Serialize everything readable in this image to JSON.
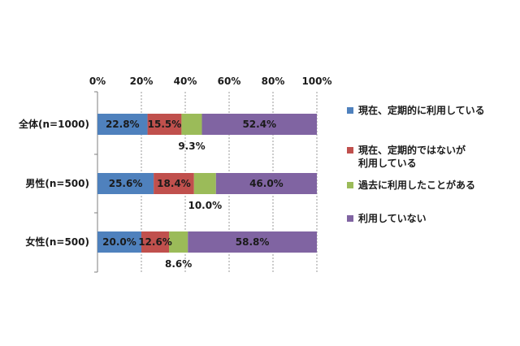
{
  "chart_data": {
    "type": "bar",
    "orientation": "horizontal",
    "stacked": true,
    "title": "",
    "xlabel": "",
    "ylabel": "",
    "xlim": [
      0,
      100
    ],
    "x_ticks": [
      "0%",
      "20%",
      "40%",
      "60%",
      "80%",
      "100%"
    ],
    "gridlines": true,
    "legend_position": "right",
    "categories": [
      "全体(n=1000)",
      "男性(n=500)",
      "女性(n=500)"
    ],
    "series": [
      {
        "name": "現在、定期的に利用している",
        "color": "#4F81BD",
        "values": [
          22.8,
          25.6,
          20.0
        ],
        "labels": [
          "22.8%",
          "25.6%",
          "20.0%"
        ]
      },
      {
        "name": "現在、定期的ではないが\n利用している",
        "color": "#C0504D",
        "values": [
          15.5,
          18.4,
          12.6
        ],
        "labels": [
          "15.5%",
          "18.4%",
          "12.6%"
        ]
      },
      {
        "name": "過去に利用したことがある",
        "color": "#9BBB59",
        "values": [
          9.3,
          10.0,
          8.6
        ],
        "labels": [
          "9.3%",
          "10.0%",
          "8.6%"
        ]
      },
      {
        "name": "利用していない",
        "color": "#8064A2",
        "values": [
          52.4,
          46.0,
          58.8
        ],
        "labels": [
          "52.4%",
          "46.0%",
          "58.8%"
        ]
      }
    ]
  }
}
